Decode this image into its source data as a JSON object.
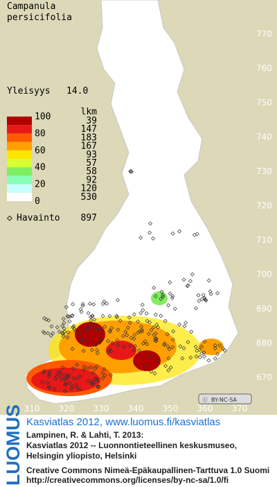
{
  "title": [
    "Campanula",
    "persicifolia"
  ],
  "frequency": {
    "label": "Yleisyys",
    "value": "14.0"
  },
  "legend": {
    "count_header": "lkm",
    "scale_labels": [
      "100",
      "80",
      "60",
      "40",
      "20",
      "0"
    ],
    "classes": [
      {
        "color": "#b00000",
        "count": "39"
      },
      {
        "color": "#e81818",
        "count": "147"
      },
      {
        "color": "#ff5a00",
        "count": "183"
      },
      {
        "color": "#ffa000",
        "count": "167"
      },
      {
        "color": "#ffe600",
        "count": "93"
      },
      {
        "color": "#d8ff30",
        "count": "57"
      },
      {
        "color": "#80ee60",
        "count": "58"
      },
      {
        "color": "#88ffb8",
        "count": "92"
      },
      {
        "color": "#c8ffff",
        "count": "120"
      },
      {
        "color": "#ffffff",
        "count": "530"
      }
    ]
  },
  "observations": {
    "label": "Havainto",
    "count": "897"
  },
  "y_labels": [
    "770",
    "760",
    "750",
    "740",
    "730",
    "720",
    "710",
    "700",
    "690",
    "680",
    "670"
  ],
  "x_labels": [
    "310",
    "320",
    "330",
    "340",
    "350",
    "360",
    "370"
  ],
  "license_badge": "BY-NC-SA",
  "footer": {
    "logo": "LUOMUS",
    "heading": "Kasviatlas 2012, www.luomus.fi/kasviatlas",
    "citation": [
      "Lampinen, R. & Lahti, T. 2013:",
      "Kasviatlas 2012 -- Luonnontieteellinen keskusmuseo,",
      "Helsingin yliopisto, Helsinki"
    ],
    "license": [
      "Creative Commons Nimeä-Epäkaupallinen-Tarttuva 1.0 Suomi",
      "http://creativecommons.org/licenses/by-nc-sa/1.0/fi"
    ]
  }
}
